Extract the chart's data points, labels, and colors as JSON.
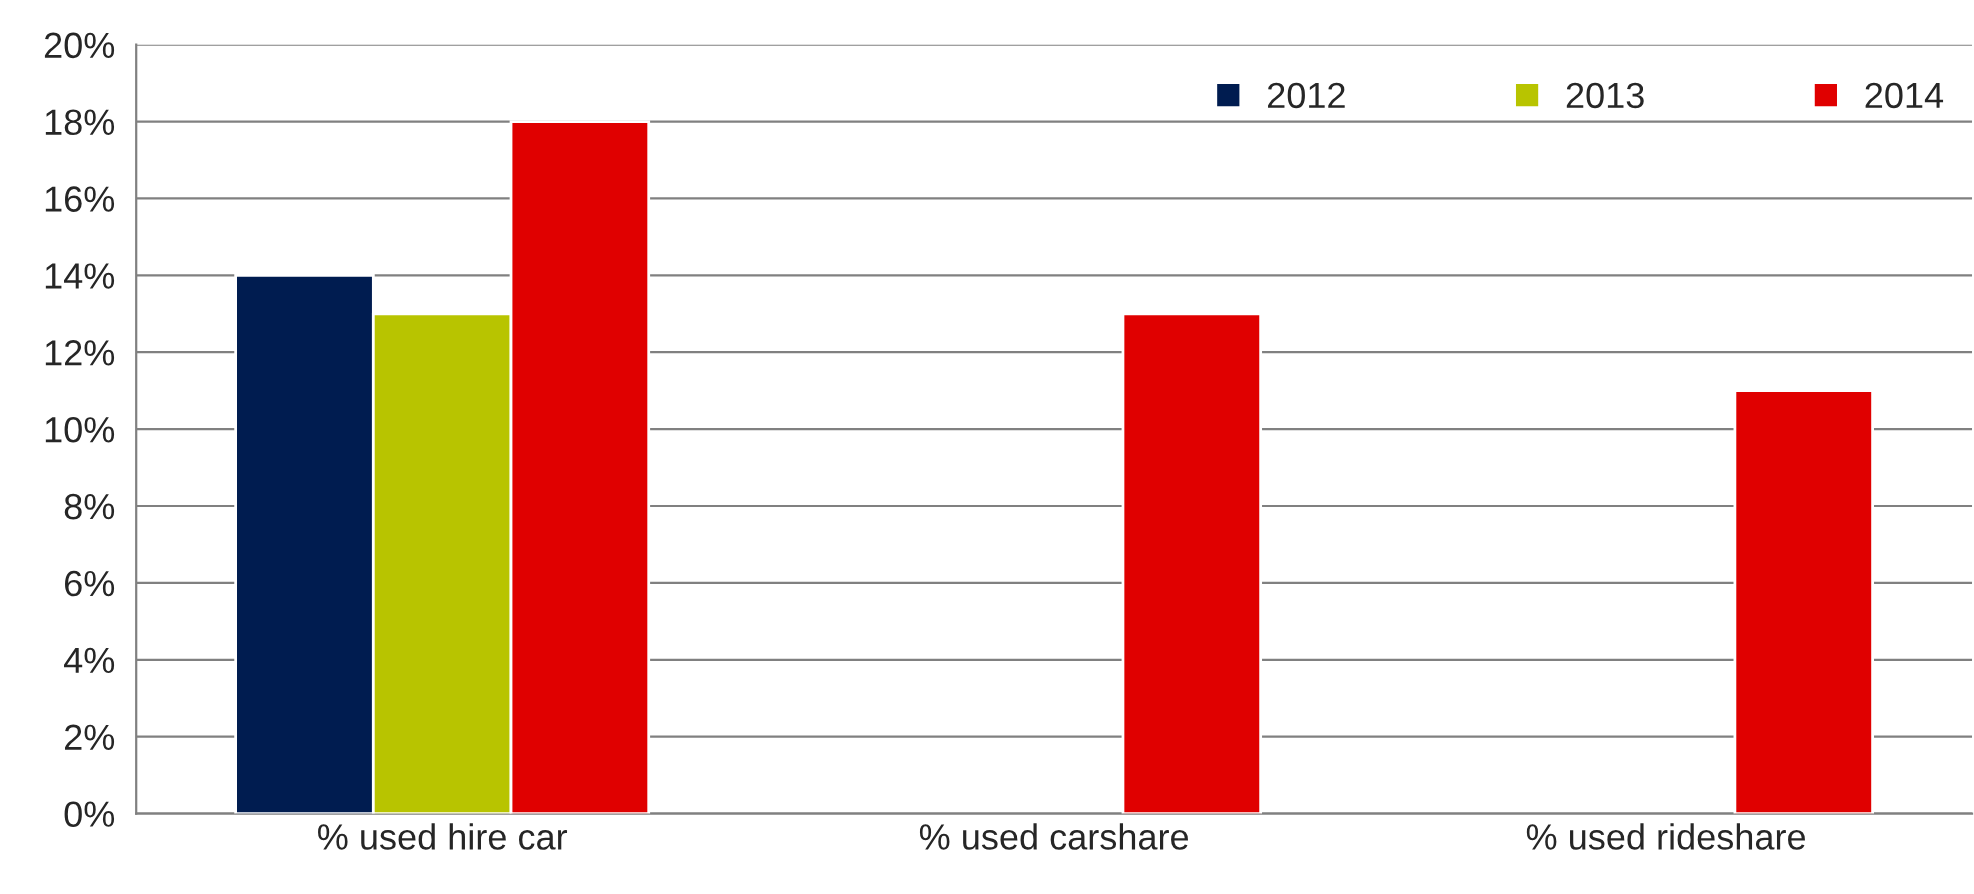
{
  "chart_data": {
    "type": "bar",
    "categories": [
      "% used hire car",
      "% used carshare",
      "% used rideshare"
    ],
    "series": [
      {
        "name": "2012",
        "color": "#001c50",
        "values": [
          14,
          null,
          null
        ]
      },
      {
        "name": "2013",
        "color": "#b8c400",
        "values": [
          13,
          null,
          null
        ]
      },
      {
        "name": "2014",
        "color": "#e00000",
        "values": [
          18,
          13,
          11
        ]
      }
    ],
    "ylim": [
      0,
      20
    ],
    "yticks": [
      {
        "value": 0,
        "label": "0%"
      },
      {
        "value": 2,
        "label": "2%"
      },
      {
        "value": 4,
        "label": "4%"
      },
      {
        "value": 6,
        "label": "6%"
      },
      {
        "value": 8,
        "label": "8%"
      },
      {
        "value": 10,
        "label": "10%"
      },
      {
        "value": 12,
        "label": "12%"
      },
      {
        "value": 14,
        "label": "14%"
      },
      {
        "value": 16,
        "label": "16%"
      },
      {
        "value": 18,
        "label": "18%"
      },
      {
        "value": 20,
        "label": "20%"
      }
    ],
    "grid": "y",
    "legend": "top right"
  }
}
